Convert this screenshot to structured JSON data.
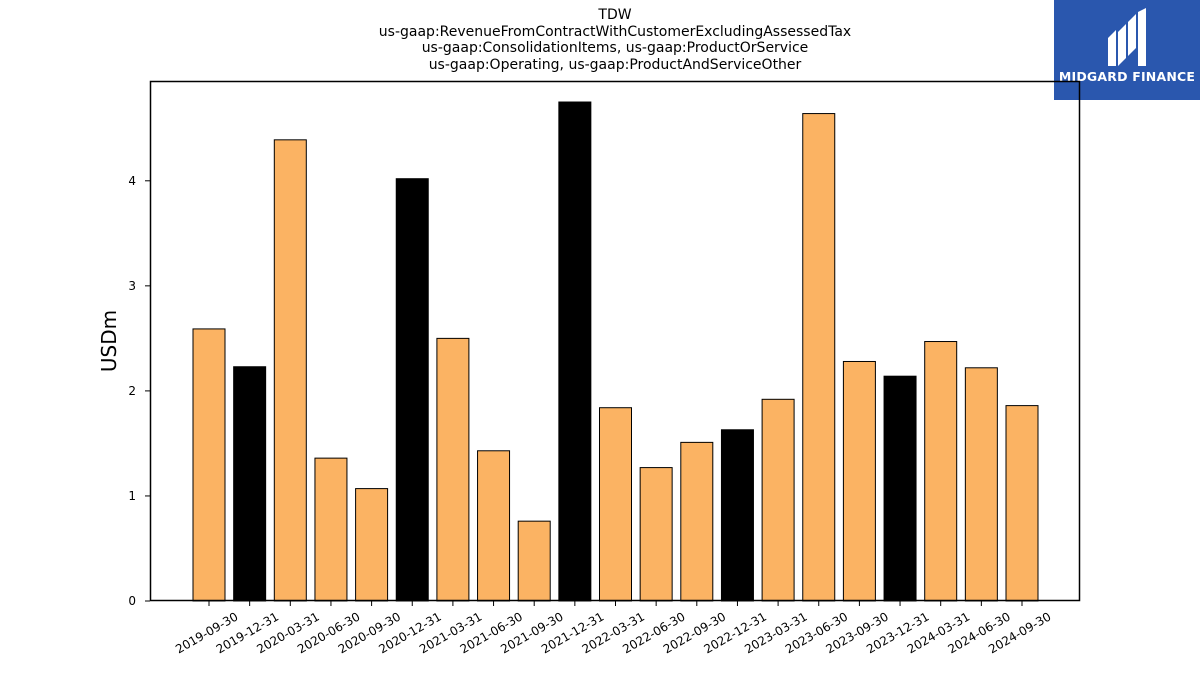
{
  "header": {
    "title_lines": [
      "TDW",
      "us-gaap:RevenueFromContractWithCustomerExcludingAssessedTax",
      "us-gaap:ConsolidationItems, us-gaap:ProductOrService",
      "us-gaap:Operating, us-gaap:ProductAndServiceOther"
    ]
  },
  "logo": {
    "text": "MIDGARD FINANCE",
    "background": "#2a57ae"
  },
  "colors": {
    "orange": "#fbb363",
    "black": "#000000"
  },
  "chart_data": {
    "type": "bar",
    "title": "TDW us-gaap:RevenueFromContractWithCustomerExcludingAssessedTax us-gaap:ConsolidationItems, us-gaap:ProductOrService us-gaap:Operating, us-gaap:ProductAndServiceOther",
    "xlabel": "",
    "ylabel": "USDm",
    "ylim": [
      0,
      4.95
    ],
    "yticks": [
      0,
      1,
      2,
      3,
      4
    ],
    "grid": false,
    "categories": [
      "2019-09-30",
      "2019-12-31",
      "2020-03-31",
      "2020-06-30",
      "2020-09-30",
      "2020-12-31",
      "2021-03-31",
      "2021-06-30",
      "2021-09-30",
      "2021-12-31",
      "2022-03-31",
      "2022-06-30",
      "2022-09-30",
      "2022-12-31",
      "2023-03-31",
      "2023-06-30",
      "2023-09-30",
      "2023-12-31",
      "2024-03-31",
      "2024-06-30",
      "2024-09-30"
    ],
    "values": [
      2.59,
      2.23,
      4.39,
      1.36,
      1.07,
      4.02,
      2.5,
      1.43,
      0.76,
      4.75,
      1.84,
      1.27,
      1.51,
      1.63,
      1.92,
      4.64,
      2.28,
      2.14,
      2.47,
      2.22,
      1.86
    ],
    "bar_colors": [
      "orange",
      "black",
      "orange",
      "orange",
      "orange",
      "black",
      "orange",
      "orange",
      "orange",
      "black",
      "orange",
      "orange",
      "orange",
      "black",
      "orange",
      "orange",
      "orange",
      "black",
      "orange",
      "orange",
      "orange"
    ]
  }
}
